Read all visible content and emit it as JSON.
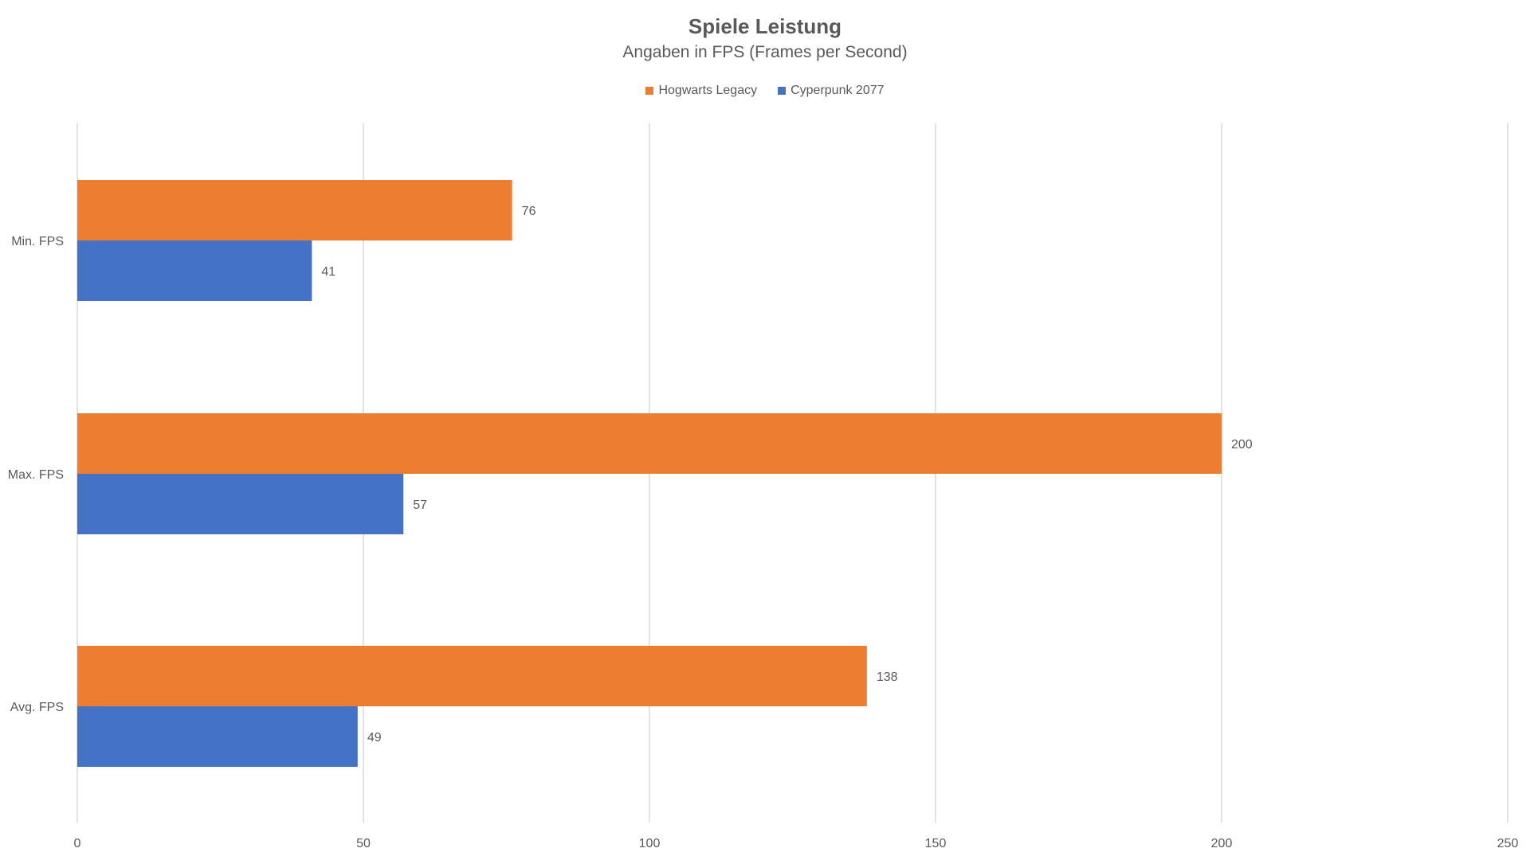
{
  "chart_data": {
    "type": "bar",
    "orientation": "horizontal",
    "title": "Spiele Leistung",
    "subtitle": "Angaben in FPS (Frames per Second)",
    "categories": [
      "Min. FPS",
      "Max. FPS",
      "Avg. FPS"
    ],
    "series": [
      {
        "name": "Hogwarts Legacy",
        "color": "#ED7D31",
        "values": [
          76,
          200,
          138
        ]
      },
      {
        "name": "Cyperpunk 2077",
        "color": "#4472C4",
        "values": [
          41,
          57,
          49
        ]
      }
    ],
    "xlim": [
      0,
      250
    ],
    "xticks": [
      0,
      50,
      100,
      150,
      200,
      250
    ],
    "grid": true,
    "legend_position": "top-center",
    "data_labels": true
  }
}
